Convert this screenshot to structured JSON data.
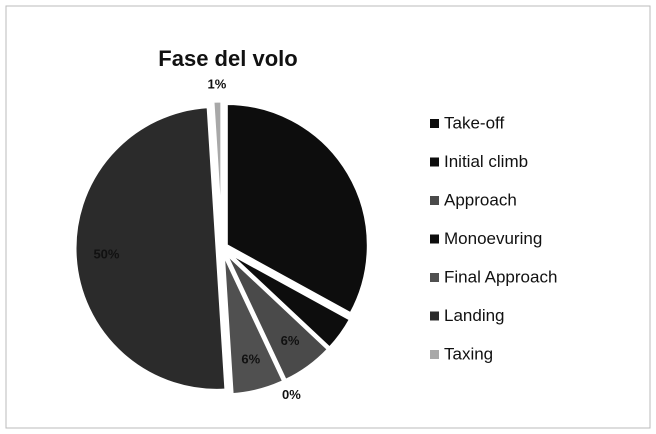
{
  "chart_data": {
    "type": "pie",
    "title": "Fase del volo",
    "categories": [
      "Take-off",
      "Initial climb",
      "Approach",
      "Monoevuring",
      "Final Approach",
      "Landing",
      "Taxing"
    ],
    "values": [
      33,
      4,
      6,
      0,
      6,
      50,
      1
    ],
    "value_labels": [
      null,
      null,
      "6%",
      "0%",
      "6%",
      "50%",
      "1%"
    ],
    "colors": [
      "#0d0d0d",
      "#0d0d0d",
      "#4a4a4a",
      "#0d0d0d",
      "#505050",
      "#2b2b2b",
      "#a8a8a8"
    ],
    "legend": "right"
  }
}
